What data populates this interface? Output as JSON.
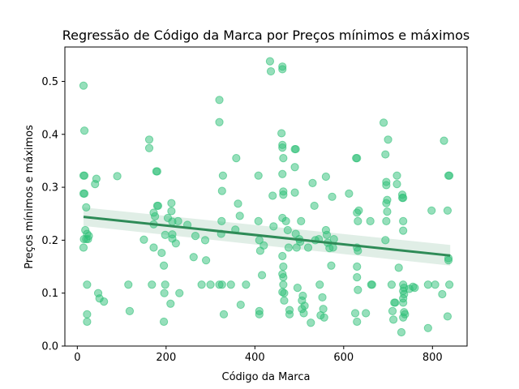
{
  "chart_data": {
    "type": "scatter",
    "title": "Regressão de Código da Marca por Preços mínimos e máximos",
    "xlabel": "Código da Marca",
    "ylabel": "Preços mínimos e máximos",
    "xlim": [
      -28,
      878
    ],
    "ylim": [
      0.0,
      0.565
    ],
    "xticks": [
      0,
      200,
      400,
      600,
      800
    ],
    "xtick_labels": [
      "0",
      "200",
      "400",
      "600",
      "800"
    ],
    "yticks": [
      0.0,
      0.1,
      0.2,
      0.3,
      0.4,
      0.5
    ],
    "ytick_labels": [
      "0.0",
      "0.1",
      "0.2",
      "0.3",
      "0.4",
      "0.5"
    ],
    "grid": false,
    "colors": {
      "points": "#2ebf77",
      "line": "#2e8b57",
      "band": "#2e8b57"
    },
    "regression": {
      "x": [
        14,
        840
      ],
      "y": [
        0.244,
        0.171
      ],
      "ci_lower": [
        0.227,
        0.152
      ],
      "ci_upper": [
        0.262,
        0.191
      ]
    },
    "points": [
      [
        14,
        0.492
      ],
      [
        16,
        0.407
      ],
      [
        14,
        0.322
      ],
      [
        16,
        0.322
      ],
      [
        14,
        0.288
      ],
      [
        16,
        0.288
      ],
      [
        20,
        0.262
      ],
      [
        18,
        0.219
      ],
      [
        22,
        0.212
      ],
      [
        26,
        0.208
      ],
      [
        15,
        0.202
      ],
      [
        20,
        0.202
      ],
      [
        24,
        0.202
      ],
      [
        14,
        0.186
      ],
      [
        22,
        0.116
      ],
      [
        22,
        0.06
      ],
      [
        22,
        0.046
      ],
      [
        43,
        0.316
      ],
      [
        40,
        0.306
      ],
      [
        47,
        0.1
      ],
      [
        50,
        0.09
      ],
      [
        60,
        0.084
      ],
      [
        90,
        0.321
      ],
      [
        115,
        0.116
      ],
      [
        118,
        0.066
      ],
      [
        150,
        0.201
      ],
      [
        162,
        0.39
      ],
      [
        162,
        0.374
      ],
      [
        172,
        0.252
      ],
      [
        175,
        0.245
      ],
      [
        172,
        0.23
      ],
      [
        172,
        0.186
      ],
      [
        178,
        0.33
      ],
      [
        180,
        0.33
      ],
      [
        180,
        0.265
      ],
      [
        182,
        0.265
      ],
      [
        168,
        0.116
      ],
      [
        190,
        0.176
      ],
      [
        195,
        0.152
      ],
      [
        196,
        0.1
      ],
      [
        198,
        0.21
      ],
      [
        198,
        0.116
      ],
      [
        195,
        0.046
      ],
      [
        204,
        0.242
      ],
      [
        210,
        0.08
      ],
      [
        212,
        0.27
      ],
      [
        212,
        0.255
      ],
      [
        214,
        0.235
      ],
      [
        214,
        0.211
      ],
      [
        214,
        0.203
      ],
      [
        222,
        0.194
      ],
      [
        227,
        0.236
      ],
      [
        230,
        0.1
      ],
      [
        248,
        0.229
      ],
      [
        262,
        0.168
      ],
      [
        266,
        0.208
      ],
      [
        280,
        0.116
      ],
      [
        288,
        0.2
      ],
      [
        290,
        0.162
      ],
      [
        300,
        0.116
      ],
      [
        320,
        0.465
      ],
      [
        320,
        0.423
      ],
      [
        326,
        0.293
      ],
      [
        328,
        0.322
      ],
      [
        320,
        0.116
      ],
      [
        326,
        0.116
      ],
      [
        330,
        0.06
      ],
      [
        325,
        0.236
      ],
      [
        324,
        0.212
      ],
      [
        346,
        0.116
      ],
      [
        356,
        0.22
      ],
      [
        358,
        0.355
      ],
      [
        362,
        0.269
      ],
      [
        366,
        0.246
      ],
      [
        368,
        0.078
      ],
      [
        380,
        0.116
      ],
      [
        408,
        0.322
      ],
      [
        408,
        0.236
      ],
      [
        410,
        0.066
      ],
      [
        410,
        0.06
      ],
      [
        410,
        0.2
      ],
      [
        412,
        0.18
      ],
      [
        416,
        0.134
      ],
      [
        420,
        0.19
      ],
      [
        434,
        0.538
      ],
      [
        436,
        0.519
      ],
      [
        440,
        0.284
      ],
      [
        442,
        0.226
      ],
      [
        462,
        0.528
      ],
      [
        462,
        0.523
      ],
      [
        460,
        0.402
      ],
      [
        462,
        0.38
      ],
      [
        462,
        0.375
      ],
      [
        464,
        0.355
      ],
      [
        462,
        0.325
      ],
      [
        464,
        0.292
      ],
      [
        464,
        0.286
      ],
      [
        462,
        0.242
      ],
      [
        462,
        0.17
      ],
      [
        464,
        0.15
      ],
      [
        462,
        0.136
      ],
      [
        464,
        0.13
      ],
      [
        464,
        0.116
      ],
      [
        462,
        0.102
      ],
      [
        466,
        0.1
      ],
      [
        466,
        0.086
      ],
      [
        470,
        0.236
      ],
      [
        474,
        0.219
      ],
      [
        476,
        0.186
      ],
      [
        478,
        0.06
      ],
      [
        478,
        0.068
      ],
      [
        490,
        0.372
      ],
      [
        492,
        0.372
      ],
      [
        490,
        0.338
      ],
      [
        490,
        0.29
      ],
      [
        492,
        0.212
      ],
      [
        494,
        0.186
      ],
      [
        496,
        0.11
      ],
      [
        500,
        0.202
      ],
      [
        502,
        0.197
      ],
      [
        504,
        0.236
      ],
      [
        506,
        0.086
      ],
      [
        506,
        0.07
      ],
      [
        508,
        0.095
      ],
      [
        510,
        0.062
      ],
      [
        512,
        0.076
      ],
      [
        520,
        0.186
      ],
      [
        526,
        0.044
      ],
      [
        530,
        0.308
      ],
      [
        534,
        0.265
      ],
      [
        536,
        0.2
      ],
      [
        544,
        0.202
      ],
      [
        546,
        0.116
      ],
      [
        548,
        0.058
      ],
      [
        552,
        0.092
      ],
      [
        554,
        0.07
      ],
      [
        556,
        0.054
      ],
      [
        560,
        0.32
      ],
      [
        560,
        0.219
      ],
      [
        562,
        0.21
      ],
      [
        564,
        0.195
      ],
      [
        568,
        0.185
      ],
      [
        572,
        0.152
      ],
      [
        574,
        0.282
      ],
      [
        576,
        0.186
      ],
      [
        578,
        0.202
      ],
      [
        612,
        0.288
      ],
      [
        628,
        0.355
      ],
      [
        630,
        0.355
      ],
      [
        630,
        0.252
      ],
      [
        634,
        0.256
      ],
      [
        632,
        0.236
      ],
      [
        630,
        0.186
      ],
      [
        632,
        0.18
      ],
      [
        630,
        0.15
      ],
      [
        630,
        0.13
      ],
      [
        632,
        0.106
      ],
      [
        626,
        0.062
      ],
      [
        630,
        0.046
      ],
      [
        650,
        0.062
      ],
      [
        660,
        0.236
      ],
      [
        662,
        0.116
      ],
      [
        664,
        0.116
      ],
      [
        690,
        0.422
      ],
      [
        694,
        0.362
      ],
      [
        696,
        0.31
      ],
      [
        696,
        0.304
      ],
      [
        698,
        0.276
      ],
      [
        696,
        0.27
      ],
      [
        698,
        0.254
      ],
      [
        696,
        0.236
      ],
      [
        700,
        0.39
      ],
      [
        694,
        0.2
      ],
      [
        708,
        0.116
      ],
      [
        710,
        0.066
      ],
      [
        712,
        0.05
      ],
      [
        714,
        0.082
      ],
      [
        716,
        0.082
      ],
      [
        720,
        0.322
      ],
      [
        720,
        0.306
      ],
      [
        724,
        0.148
      ],
      [
        732,
        0.286
      ],
      [
        732,
        0.28
      ],
      [
        734,
        0.28
      ],
      [
        734,
        0.236
      ],
      [
        734,
        0.218
      ],
      [
        734,
        0.116
      ],
      [
        736,
        0.11
      ],
      [
        734,
        0.104
      ],
      [
        736,
        0.098
      ],
      [
        734,
        0.09
      ],
      [
        734,
        0.082
      ],
      [
        736,
        0.064
      ],
      [
        738,
        0.06
      ],
      [
        734,
        0.054
      ],
      [
        730,
        0.026
      ],
      [
        748,
        0.108
      ],
      [
        756,
        0.112
      ],
      [
        760,
        0.11
      ],
      [
        790,
        0.116
      ],
      [
        790,
        0.034
      ],
      [
        798,
        0.256
      ],
      [
        806,
        0.116
      ],
      [
        822,
        0.098
      ],
      [
        826,
        0.388
      ],
      [
        836,
        0.322
      ],
      [
        838,
        0.322
      ],
      [
        834,
        0.256
      ],
      [
        836,
        0.166
      ],
      [
        836,
        0.162
      ],
      [
        838,
        0.116
      ],
      [
        834,
        0.056
      ]
    ]
  }
}
